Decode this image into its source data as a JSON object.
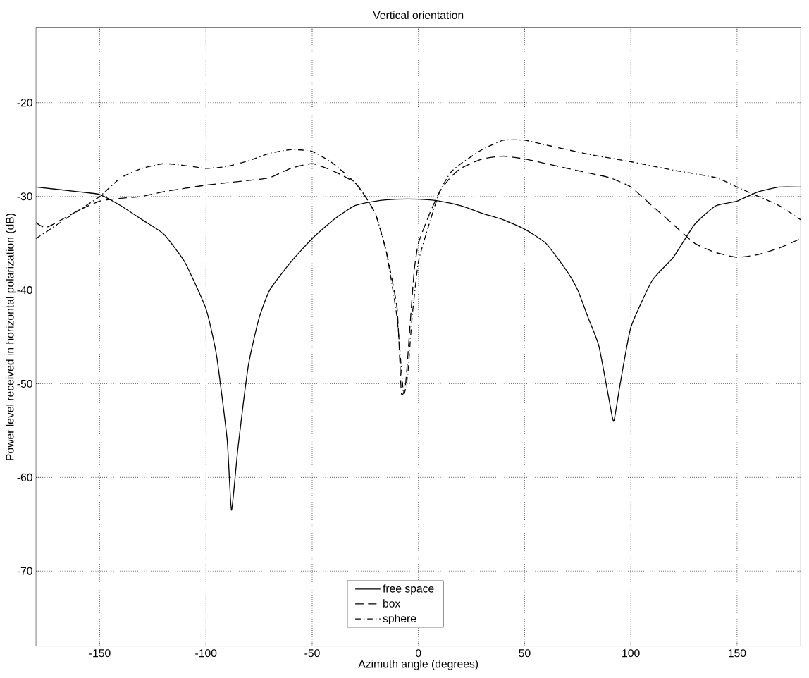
{
  "chart_data": {
    "type": "line",
    "title": "Vertical orientation",
    "xlabel": "Azimuth angle (degrees)",
    "ylabel": "Power level received in horizontal polarization (dB)",
    "xlim": [
      -180,
      180
    ],
    "ylim": [
      -78,
      -12
    ],
    "xticks": [
      -150,
      -100,
      -50,
      0,
      50,
      100,
      150
    ],
    "yticks": [
      -70,
      -60,
      -50,
      -40,
      -30,
      -20
    ],
    "grid": true,
    "legend": "bottom",
    "series": [
      {
        "name": "free space",
        "color": "#000000",
        "line_style": "solid",
        "x": [
          -180,
          -160,
          -150,
          -140,
          -130,
          -120,
          -110,
          -100,
          -95,
          -90,
          -88,
          -85,
          -80,
          -75,
          -70,
          -60,
          -50,
          -40,
          -30,
          -20,
          -10,
          0,
          10,
          20,
          30,
          40,
          50,
          60,
          70,
          75,
          80,
          85,
          90,
          92,
          95,
          100,
          110,
          120,
          130,
          140,
          150,
          160,
          170,
          180
        ],
        "values": [
          -29,
          -29.5,
          -29.8,
          -31,
          -32.5,
          -34,
          -37,
          -42,
          -47,
          -56,
          -63.5,
          -57,
          -48,
          -43,
          -40,
          -37,
          -34.5,
          -32.5,
          -31,
          -30.5,
          -30.3,
          -30.3,
          -30.5,
          -31,
          -31.8,
          -32.5,
          -33.5,
          -35,
          -38,
          -40,
          -43,
          -46,
          -52,
          -54,
          -50,
          -44,
          -39,
          -36.5,
          -33,
          -31,
          -30.5,
          -29.5,
          -29,
          -29
        ]
      },
      {
        "name": "box",
        "color": "#000000",
        "line_style": "dashed",
        "x": [
          -180,
          -175,
          -160,
          -150,
          -140,
          -130,
          -120,
          -100,
          -80,
          -70,
          -60,
          -50,
          -40,
          -30,
          -25,
          -20,
          -15,
          -10,
          -8,
          -6,
          -4,
          -2,
          0,
          5,
          10,
          15,
          20,
          30,
          40,
          50,
          60,
          70,
          80,
          90,
          100,
          110,
          120,
          130,
          140,
          150,
          160,
          170,
          180
        ],
        "values": [
          -32.8,
          -33.3,
          -31.5,
          -30.5,
          -30.2,
          -30,
          -29.5,
          -28.8,
          -28.3,
          -28,
          -27,
          -26.5,
          -27.3,
          -28.5,
          -30,
          -32,
          -36,
          -42,
          -51,
          -50,
          -44,
          -38,
          -35,
          -32,
          -29.5,
          -28,
          -27,
          -26,
          -25.7,
          -26,
          -26.5,
          -27,
          -27.5,
          -28,
          -29,
          -31,
          -33,
          -35,
          -36,
          -36.5,
          -36.2,
          -35.5,
          -34.5
        ]
      },
      {
        "name": "sphere",
        "color": "#000000",
        "line_style": "dashdot",
        "x": [
          -180,
          -170,
          -160,
          -150,
          -140,
          -130,
          -120,
          -110,
          -100,
          -90,
          -80,
          -70,
          -60,
          -50,
          -40,
          -30,
          -25,
          -20,
          -15,
          -10,
          -7,
          -5,
          -3,
          0,
          5,
          10,
          15,
          20,
          30,
          40,
          50,
          60,
          80,
          100,
          120,
          140,
          150,
          160,
          170,
          180
        ],
        "values": [
          -34.5,
          -33,
          -31.5,
          -30,
          -28,
          -27,
          -26.5,
          -26.7,
          -27,
          -26.8,
          -26.2,
          -25.4,
          -25,
          -25.2,
          -26.5,
          -28.5,
          -30,
          -32,
          -36,
          -43,
          -51,
          -49,
          -43,
          -37,
          -33,
          -29.5,
          -27.5,
          -26.5,
          -25,
          -24,
          -24,
          -24.5,
          -25.5,
          -26.3,
          -27.2,
          -28,
          -29,
          -30,
          -31,
          -32.5
        ]
      }
    ]
  }
}
